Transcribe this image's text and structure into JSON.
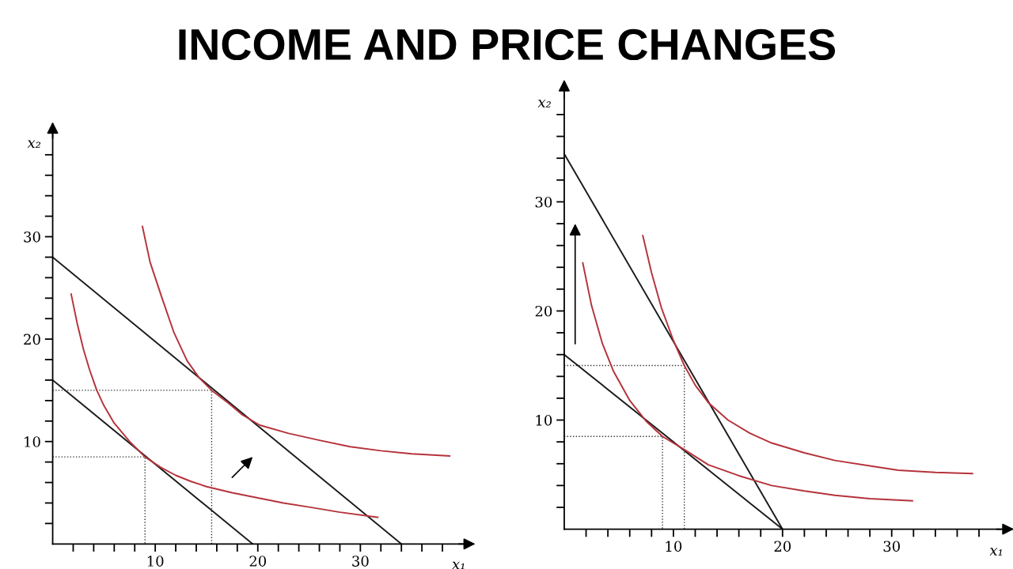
{
  "chart_data": [
    {
      "type": "line",
      "title": "INCOME AND PRICE CHANGES",
      "xlabel": "x₁",
      "ylabel": "x₂",
      "legend": false,
      "grid": false,
      "xlim": [
        0,
        40
      ],
      "ylim": [
        0,
        40
      ],
      "xticks": [
        {
          "value": 2,
          "label": null
        },
        {
          "value": 4,
          "label": null
        },
        {
          "value": 6,
          "label": null
        },
        {
          "value": 8,
          "label": null
        },
        10,
        {
          "value": 12,
          "label": null
        },
        {
          "value": 14,
          "label": null
        },
        {
          "value": 16,
          "label": null
        },
        {
          "value": 18,
          "label": null
        },
        20,
        {
          "value": 22,
          "label": null
        },
        {
          "value": 24,
          "label": null
        },
        {
          "value": 26,
          "label": null
        },
        {
          "value": 28,
          "label": null
        },
        30,
        {
          "value": 32,
          "label": null
        },
        {
          "value": 34,
          "label": null
        },
        {
          "value": 36,
          "label": null
        },
        {
          "value": 38,
          "label": null
        }
      ],
      "yticks": [
        {
          "value": 2,
          "label": null
        },
        {
          "value": 4,
          "label": null
        },
        {
          "value": 6,
          "label": null
        },
        {
          "value": 8,
          "label": null
        },
        10,
        {
          "value": 12,
          "label": null
        },
        {
          "value": 14,
          "label": null
        },
        {
          "value": 16,
          "label": null
        },
        {
          "value": 18,
          "label": null
        },
        20,
        {
          "value": 22,
          "label": null
        },
        {
          "value": 24,
          "label": null
        },
        {
          "value": 26,
          "label": null
        },
        {
          "value": 28,
          "label": null
        },
        30,
        {
          "value": 32,
          "label": null
        },
        {
          "value": 34,
          "label": null
        },
        {
          "value": 36,
          "label": null
        },
        {
          "value": 38,
          "label": null
        }
      ],
      "series": [
        {
          "color": "#333333",
          "line_style": "dotted",
          "marker": "none",
          "x": [
            0,
            9,
            9
          ],
          "values": [
            8.5,
            8.5,
            0
          ]
        },
        {
          "color": "#333333",
          "line_style": "dotted",
          "marker": "none",
          "x": [
            0,
            15.5,
            15.5
          ],
          "values": [
            15,
            15,
            0
          ]
        },
        {
          "color": "#1a1a1a",
          "line_style": "solid",
          "marker": "none",
          "x": [
            0,
            19.5
          ],
          "values": [
            16,
            0
          ]
        },
        {
          "color": "#1a1a1a",
          "line_style": "solid",
          "marker": "none",
          "x": [
            0,
            34
          ],
          "values": [
            28,
            0
          ]
        },
        {
          "color": "#b5333b",
          "line_style": "solid",
          "marker": "none",
          "x": [
            1.8,
            2.4,
            3,
            3.6,
            4.3,
            5,
            6,
            7.5,
            9,
            10.5,
            12,
            13.5,
            15,
            17.5,
            20,
            22.5,
            25,
            28,
            31.7
          ],
          "values": [
            24.4,
            21.5,
            19,
            17,
            15,
            13.5,
            11.8,
            10,
            8.5,
            7.5,
            6.7,
            6.1,
            5.6,
            5,
            4.5,
            4,
            3.6,
            3.1,
            2.6
          ]
        },
        {
          "color": "#b5333b",
          "line_style": "solid",
          "marker": "none",
          "x": [
            8.75,
            9.5,
            10.7,
            11.8,
            13.1,
            14.3,
            15.5,
            17.2,
            18.5,
            20.2,
            23,
            26.1,
            29,
            32,
            35,
            38.7
          ],
          "values": [
            31,
            27.5,
            23.9,
            20.7,
            17.9,
            16.2,
            15,
            13.7,
            12.6,
            11.6,
            10.8,
            10.1,
            9.5,
            9.1,
            8.8,
            8.6
          ]
        }
      ]
    },
    {
      "type": "line",
      "xlabel": "x₁",
      "ylabel": "x₂",
      "legend": false,
      "grid": false,
      "xlim": [
        0,
        40
      ],
      "ylim": [
        0,
        40
      ],
      "xticks": [
        {
          "value": 2,
          "label": null
        },
        {
          "value": 4,
          "label": null
        },
        {
          "value": 6,
          "label": null
        },
        {
          "value": 8,
          "label": null
        },
        10,
        {
          "value": 12,
          "label": null
        },
        {
          "value": 14,
          "label": null
        },
        {
          "value": 16,
          "label": null
        },
        {
          "value": 18,
          "label": null
        },
        20,
        {
          "value": 22,
          "label": null
        },
        {
          "value": 24,
          "label": null
        },
        {
          "value": 26,
          "label": null
        },
        {
          "value": 28,
          "label": null
        },
        30,
        {
          "value": 32,
          "label": null
        },
        {
          "value": 34,
          "label": null
        },
        {
          "value": 36,
          "label": null
        },
        {
          "value": 38,
          "label": null
        }
      ],
      "yticks": [
        {
          "value": 2,
          "label": null
        },
        {
          "value": 4,
          "label": null
        },
        {
          "value": 6,
          "label": null
        },
        {
          "value": 8,
          "label": null
        },
        10,
        {
          "value": 12,
          "label": null
        },
        {
          "value": 14,
          "label": null
        },
        {
          "value": 16,
          "label": null
        },
        {
          "value": 18,
          "label": null
        },
        20,
        {
          "value": 22,
          "label": null
        },
        {
          "value": 24,
          "label": null
        },
        {
          "value": 26,
          "label": null
        },
        {
          "value": 28,
          "label": null
        },
        30,
        {
          "value": 32,
          "label": null
        },
        {
          "value": 34,
          "label": null
        },
        {
          "value": 36,
          "label": null
        },
        {
          "value": 38,
          "label": null
        }
      ],
      "series": [
        {
          "color": "#333333",
          "line_style": "dotted",
          "marker": "none",
          "x": [
            0,
            9,
            9
          ],
          "values": [
            8.5,
            8.5,
            0
          ]
        },
        {
          "color": "#333333",
          "line_style": "dotted",
          "marker": "none",
          "x": [
            0,
            11,
            11
          ],
          "values": [
            15,
            15,
            0
          ]
        },
        {
          "color": "#1a1a1a",
          "line_style": "solid",
          "marker": "none",
          "x": [
            0,
            20
          ],
          "values": [
            16,
            0
          ]
        },
        {
          "color": "#1a1a1a",
          "line_style": "solid",
          "marker": "none",
          "x": [
            0,
            20
          ],
          "values": [
            34.4,
            0
          ]
        },
        {
          "color": "#b5333b",
          "line_style": "solid",
          "marker": "none",
          "x": [
            1.7,
            2.5,
            3.5,
            4.5,
            6,
            7.5,
            9,
            11,
            13.2,
            16,
            19,
            22,
            24.8,
            28,
            31.9
          ],
          "values": [
            24.4,
            20.5,
            17,
            14.5,
            11.8,
            9.9,
            8.5,
            7.3,
            5.9,
            4.9,
            4,
            3.5,
            3.1,
            2.8,
            2.6
          ]
        },
        {
          "color": "#b5333b",
          "line_style": "solid",
          "marker": "none",
          "x": [
            7.2,
            8,
            8.9,
            10,
            11,
            12,
            13.2,
            15,
            17,
            19,
            22,
            24.8,
            28,
            30.6,
            34,
            37.4
          ],
          "values": [
            26.9,
            23.5,
            20.3,
            17.3,
            15,
            13.2,
            11.6,
            10,
            8.8,
            7.9,
            7,
            6.3,
            5.8,
            5.4,
            5.2,
            5.1
          ]
        }
      ]
    }
  ]
}
